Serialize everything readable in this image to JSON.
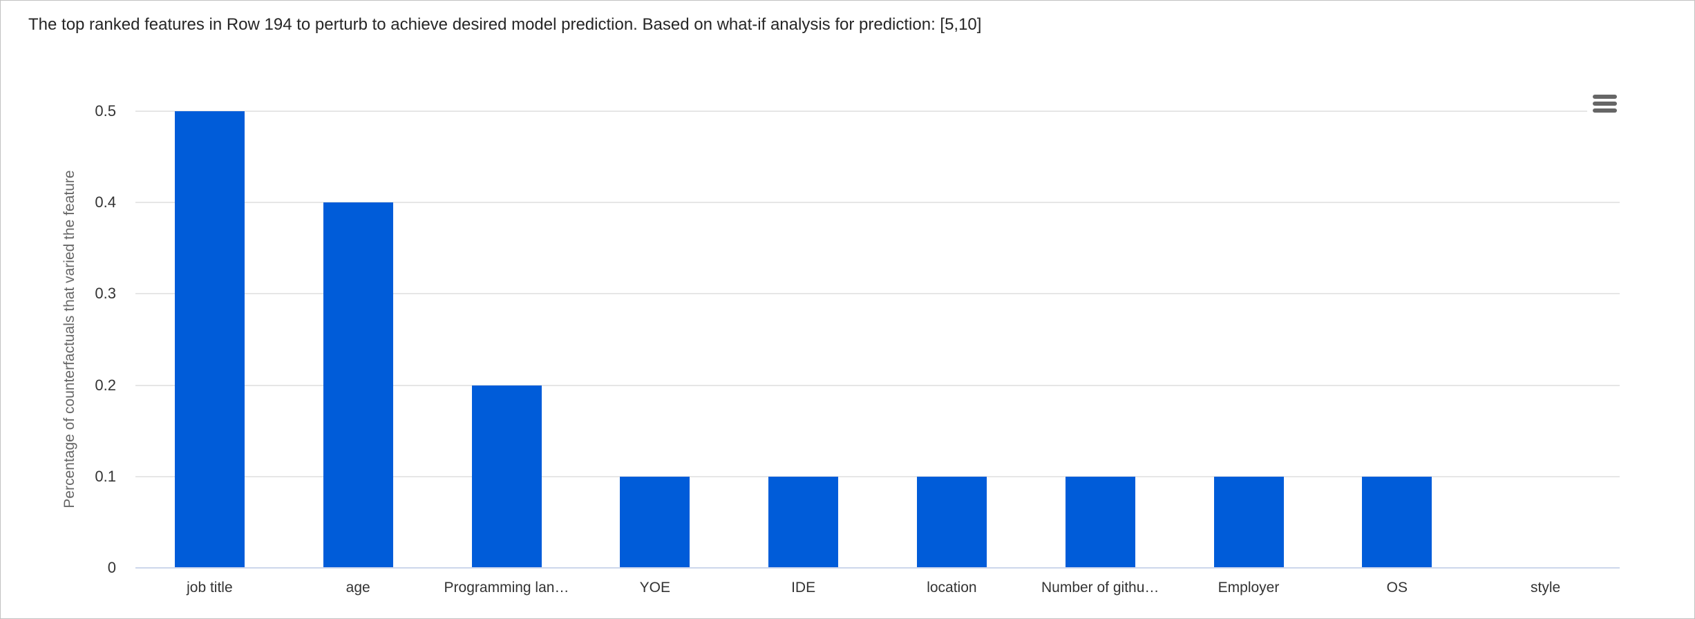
{
  "chart_data": {
    "type": "bar",
    "title": "The top ranked features in Row 194 to perturb to achieve desired model prediction. Based on what-if analysis for prediction: [5,10]",
    "categories": [
      "job title",
      "age",
      "Programming lan…",
      "YOE",
      "IDE",
      "location",
      "Number of githu…",
      "Employer",
      "OS",
      "style"
    ],
    "values": [
      0.5,
      0.4,
      0.2,
      0.1,
      0.1,
      0.1,
      0.1,
      0.1,
      0.1,
      0
    ],
    "xlabel": "",
    "ylabel": "Percentage of counterfactuals that varied the feature",
    "ylim": [
      0,
      0.5
    ],
    "yticks": [
      0,
      0.1,
      0.2,
      0.3,
      0.4,
      0.5
    ],
    "ytick_labels": [
      "0",
      "0.1",
      "0.2",
      "0.3",
      "0.4",
      "0.5"
    ],
    "grid": "horizontal-only",
    "legend": "none",
    "series_name": "counterfactual-feature-frequency",
    "colors": {
      "bar": "#005CD9",
      "gridline": "#e6e6e6",
      "axis_line": "#ccd6eb",
      "tick_label": "#333333",
      "axis_title": "#666666",
      "title_text": "#262626",
      "menu_icon": "#666666"
    }
  },
  "toolbar": {
    "context_menu_icon": "hamburger-icon"
  }
}
